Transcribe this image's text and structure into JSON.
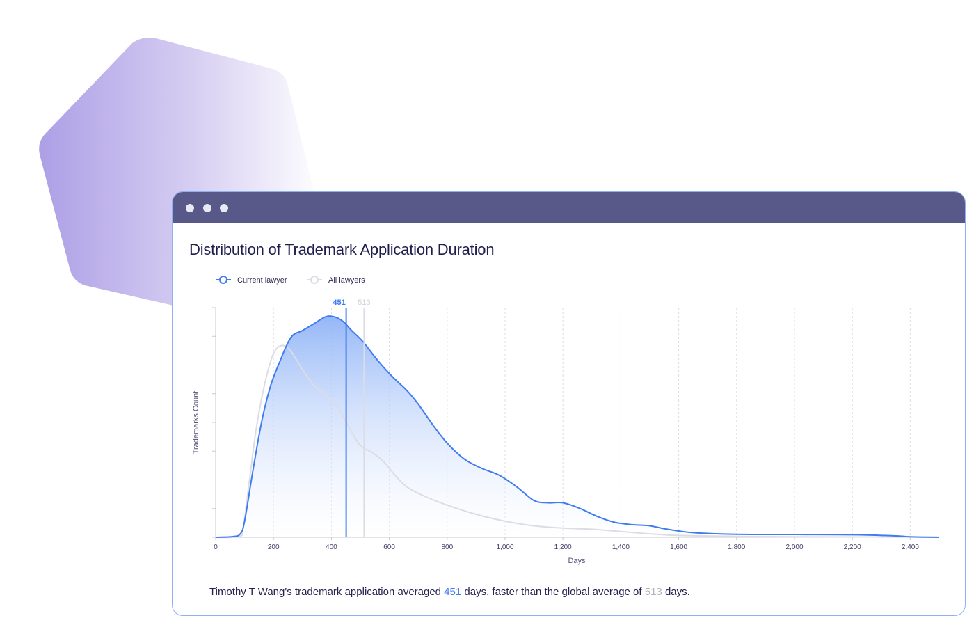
{
  "window": {
    "controls": [
      "close",
      "minimize",
      "maximize"
    ]
  },
  "colors": {
    "titlebar": "#585989",
    "current_series": "#3f7cf0",
    "all_series": "#dcdce4",
    "title_text": "#1f1d4e",
    "window_border": "#8fb0f2",
    "hexagon_gradient": [
      "#ad9fe6",
      "#ffffff"
    ]
  },
  "chart_data": {
    "type": "area",
    "title": "Distribution of Trademark Application Duration",
    "xlabel": "Days",
    "ylabel": "Trademarks Count",
    "xlim": [
      0,
      2500
    ],
    "ylim": [
      0,
      1
    ],
    "x_ticks": [
      0,
      200,
      400,
      600,
      800,
      1000,
      1200,
      1400,
      1600,
      1800,
      2000,
      2200,
      2400
    ],
    "x_tick_labels": [
      "0",
      "200",
      "400",
      "600",
      "800",
      "1,000",
      "1,200",
      "1,400",
      "1,600",
      "1,800",
      "2,000",
      "2,200",
      "2,400"
    ],
    "y_ticks": [
      0.125,
      0.25,
      0.375,
      0.5,
      0.625,
      0.75,
      0.875,
      1.0
    ],
    "grid": "vertical-dashed",
    "legend_position": "top-left",
    "series": [
      {
        "name": "Current lawyer",
        "color": "#3f7cf0",
        "filled": true,
        "mean": 451,
        "points": [
          [
            0,
            0
          ],
          [
            60,
            0.003
          ],
          [
            85,
            0.015
          ],
          [
            100,
            0.07
          ],
          [
            130,
            0.3
          ],
          [
            160,
            0.51
          ],
          [
            190,
            0.66
          ],
          [
            220,
            0.76
          ],
          [
            260,
            0.87
          ],
          [
            300,
            0.9
          ],
          [
            340,
            0.93
          ],
          [
            380,
            0.96
          ],
          [
            410,
            0.96
          ],
          [
            440,
            0.94
          ],
          [
            470,
            0.9
          ],
          [
            510,
            0.85
          ],
          [
            560,
            0.77
          ],
          [
            610,
            0.7
          ],
          [
            660,
            0.64
          ],
          [
            700,
            0.58
          ],
          [
            750,
            0.49
          ],
          [
            800,
            0.41
          ],
          [
            860,
            0.34
          ],
          [
            920,
            0.3
          ],
          [
            980,
            0.27
          ],
          [
            1040,
            0.22
          ],
          [
            1100,
            0.16
          ],
          [
            1150,
            0.15
          ],
          [
            1200,
            0.15
          ],
          [
            1260,
            0.125
          ],
          [
            1320,
            0.09
          ],
          [
            1380,
            0.065
          ],
          [
            1440,
            0.055
          ],
          [
            1500,
            0.05
          ],
          [
            1560,
            0.035
          ],
          [
            1650,
            0.02
          ],
          [
            1800,
            0.013
          ],
          [
            2000,
            0.012
          ],
          [
            2200,
            0.011
          ],
          [
            2350,
            0.006
          ],
          [
            2400,
            0.002
          ],
          [
            2500,
            0
          ]
        ]
      },
      {
        "name": "All lawyers",
        "color": "#dcdce4",
        "filled": false,
        "mean": 513,
        "points": [
          [
            0,
            0
          ],
          [
            80,
            0.003
          ],
          [
            95,
            0.04
          ],
          [
            115,
            0.23
          ],
          [
            140,
            0.47
          ],
          [
            170,
            0.67
          ],
          [
            200,
            0.8
          ],
          [
            230,
            0.835
          ],
          [
            260,
            0.81
          ],
          [
            300,
            0.73
          ],
          [
            340,
            0.66
          ],
          [
            380,
            0.62
          ],
          [
            420,
            0.57
          ],
          [
            460,
            0.48
          ],
          [
            500,
            0.4
          ],
          [
            540,
            0.37
          ],
          [
            580,
            0.33
          ],
          [
            620,
            0.27
          ],
          [
            660,
            0.22
          ],
          [
            720,
            0.18
          ],
          [
            800,
            0.14
          ],
          [
            900,
            0.1
          ],
          [
            1000,
            0.07
          ],
          [
            1100,
            0.05
          ],
          [
            1200,
            0.04
          ],
          [
            1300,
            0.035
          ],
          [
            1400,
            0.025
          ],
          [
            1500,
            0.015
          ],
          [
            1600,
            0.008
          ],
          [
            1800,
            0.004
          ],
          [
            2000,
            0.002
          ],
          [
            2500,
            0.001
          ]
        ]
      }
    ],
    "annotations": [
      {
        "label": "451",
        "x": 451,
        "series": "Current lawyer"
      },
      {
        "label": "513",
        "x": 513,
        "series": "All lawyers"
      }
    ]
  },
  "legend": {
    "items": [
      {
        "label": "Current lawyer",
        "color": "#3f7cf0"
      },
      {
        "label": "All lawyers",
        "color": "#dcdce4"
      }
    ]
  },
  "summary": {
    "prefix": "Timothy T Wang's trademark application averaged ",
    "current_value": "451",
    "middle": " days, faster than the global average of ",
    "global_value": "513",
    "suffix": " days."
  }
}
